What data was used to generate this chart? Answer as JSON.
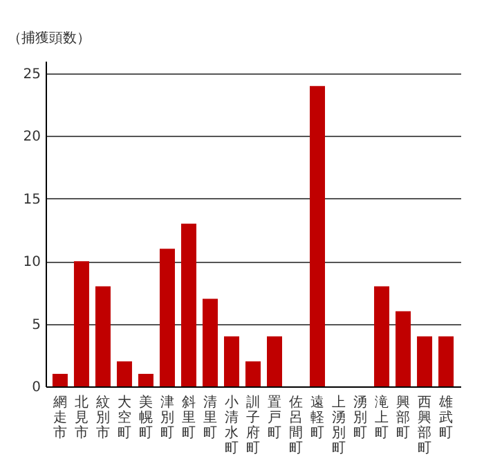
{
  "chart_data": {
    "type": "bar",
    "ylabel": "（捕獲頭数）",
    "categories": [
      "網走市",
      "北見市",
      "紋別市",
      "大空町",
      "美幌町",
      "津別町",
      "斜里町",
      "清里町",
      "小清水町",
      "訓子府町",
      "置戸町",
      "佐呂間町",
      "遠軽町",
      "上湧別町",
      "湧別町",
      "滝上町",
      "興部町",
      "西興部町",
      "雄武町"
    ],
    "values": [
      1,
      10,
      8,
      2,
      1,
      11,
      13,
      7,
      4,
      2,
      4,
      0,
      24,
      0,
      0,
      8,
      6,
      4,
      4
    ],
    "color": "#c00000",
    "ylim": [
      0,
      26
    ],
    "yticks": [
      0,
      5,
      10,
      15,
      20,
      25
    ],
    "grid": "y"
  }
}
